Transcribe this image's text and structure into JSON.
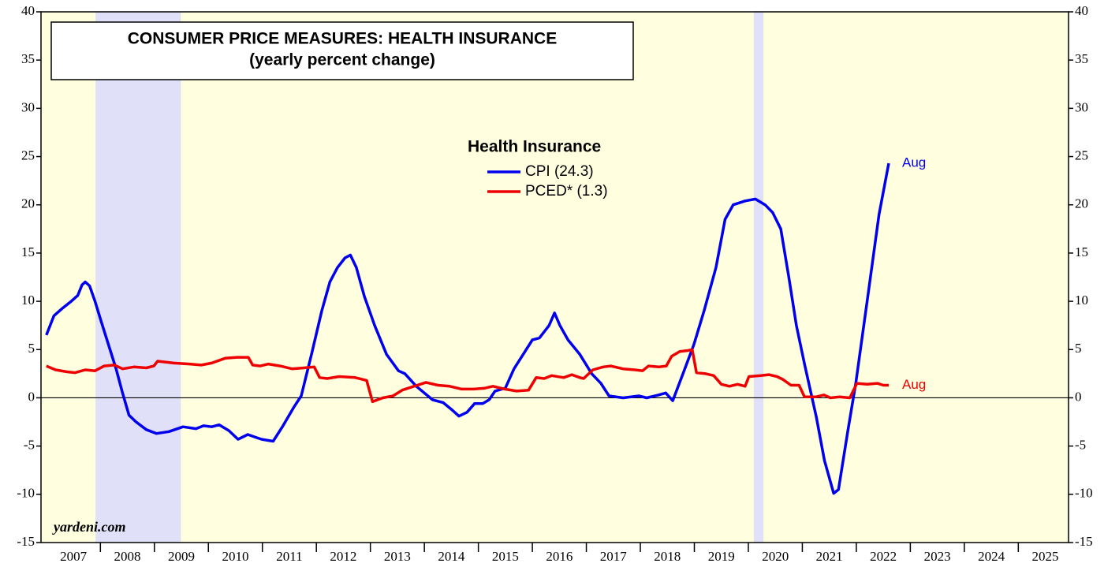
{
  "chart_data": {
    "type": "line",
    "title": "CONSUMER PRICE MEASURES: HEALTH INSURANCE",
    "subtitle": "(yearly percent change)",
    "legend_title": "Health Insurance",
    "source": "yardeni.com",
    "xlim": [
      2006.9,
      2025.93
    ],
    "xticks": [
      {
        "value": 2007.5,
        "label": "2007"
      },
      {
        "value": 2008.5,
        "label": "2008"
      },
      {
        "value": 2009.5,
        "label": "2009"
      },
      {
        "value": 2010.5,
        "label": "2010"
      },
      {
        "value": 2011.5,
        "label": "2011"
      },
      {
        "value": 2012.5,
        "label": "2012"
      },
      {
        "value": 2013.5,
        "label": "2013"
      },
      {
        "value": 2014.5,
        "label": "2014"
      },
      {
        "value": 2015.5,
        "label": "2015"
      },
      {
        "value": 2016.5,
        "label": "2016"
      },
      {
        "value": 2017.5,
        "label": "2017"
      },
      {
        "value": 2018.5,
        "label": "2018"
      },
      {
        "value": 2019.5,
        "label": "2019"
      },
      {
        "value": 2020.5,
        "label": "2020"
      },
      {
        "value": 2021.5,
        "label": "2021"
      },
      {
        "value": 2022.5,
        "label": "2022"
      },
      {
        "value": 2023.5,
        "label": "2023"
      },
      {
        "value": 2024.5,
        "label": "2024"
      },
      {
        "value": 2025.5,
        "label": "2025"
      }
    ],
    "ylim": [
      -15,
      40
    ],
    "yticks": [
      -15,
      -10,
      -5,
      0,
      5,
      10,
      15,
      20,
      25,
      30,
      35,
      40
    ],
    "shading": [
      [
        2007.91,
        2009.49
      ],
      [
        2020.1,
        2020.28
      ]
    ],
    "series": [
      {
        "name": "CPI (24.3)",
        "color": "#0000ee",
        "end_label": "Aug",
        "x": [
          2007.0,
          2007.14,
          2007.28,
          2007.46,
          2007.58,
          2007.66,
          2007.72,
          2007.8,
          2007.9,
          2008.01,
          2008.15,
          2008.29,
          2008.41,
          2008.53,
          2008.66,
          2008.85,
          2009.04,
          2009.27,
          2009.53,
          2009.77,
          2009.91,
          2010.06,
          2010.2,
          2010.38,
          2010.55,
          2010.73,
          2010.88,
          2010.99,
          2011.2,
          2011.37,
          2011.58,
          2011.72,
          2011.91,
          2012.1,
          2012.25,
          2012.39,
          2012.53,
          2012.63,
          2012.74,
          2012.89,
          2013.08,
          2013.3,
          2013.52,
          2013.64,
          2013.85,
          2014.15,
          2014.35,
          2014.5,
          2014.64,
          2014.79,
          2014.93,
          2015.08,
          2015.2,
          2015.31,
          2015.5,
          2015.66,
          2015.83,
          2016.0,
          2016.13,
          2016.31,
          2016.41,
          2016.51,
          2016.66,
          2016.88,
          2017.1,
          2017.27,
          2017.42,
          2017.68,
          2017.97,
          2018.12,
          2018.34,
          2018.47,
          2018.6,
          2018.79,
          2018.99,
          2019.18,
          2019.4,
          2019.57,
          2019.72,
          2019.94,
          2020.13,
          2020.31,
          2020.45,
          2020.6,
          2020.75,
          2020.89,
          2021.04,
          2021.26,
          2021.41,
          2021.58,
          2021.67,
          2021.84,
          2021.99,
          2022.2,
          2022.42,
          2022.6
        ],
        "values": [
          6.5,
          8.5,
          9.2,
          10.0,
          10.6,
          11.7,
          12.0,
          11.6,
          10.0,
          8.0,
          5.5,
          3.0,
          0.5,
          -1.8,
          -2.5,
          -3.3,
          -3.7,
          -3.5,
          -3.0,
          -3.2,
          -2.9,
          -3.0,
          -2.8,
          -3.4,
          -4.3,
          -3.8,
          -4.1,
          -4.3,
          -4.5,
          -3.0,
          -1.0,
          0.2,
          4.5,
          9.0,
          12.0,
          13.5,
          14.5,
          14.8,
          13.5,
          10.5,
          7.5,
          4.5,
          2.8,
          2.5,
          1.2,
          -0.2,
          -0.5,
          -1.2,
          -1.9,
          -1.5,
          -0.6,
          -0.6,
          -0.2,
          0.7,
          1.0,
          3.0,
          4.5,
          6.0,
          6.2,
          7.5,
          8.8,
          7.5,
          6.0,
          4.5,
          2.5,
          1.5,
          0.2,
          0,
          0.2,
          0,
          0.3,
          0.5,
          -0.3,
          2.5,
          5.5,
          9.0,
          13.5,
          18.5,
          20.0,
          20.4,
          20.6,
          20.0,
          19.2,
          17.5,
          12.5,
          7.5,
          3.5,
          -2.0,
          -6.5,
          -9.9,
          -9.5,
          -3.5,
          1.5,
          10.0,
          19.0,
          24.3
        ]
      },
      {
        "name": "PCED* (1.3)",
        "color": "#ee0000",
        "end_label": "Aug",
        "x": [
          2007.0,
          2007.17,
          2007.37,
          2007.53,
          2007.72,
          2007.9,
          2008.07,
          2008.26,
          2008.41,
          2008.62,
          2008.85,
          2008.99,
          2009.06,
          2009.36,
          2009.65,
          2009.87,
          2010.06,
          2010.31,
          2010.53,
          2010.74,
          2010.82,
          2010.96,
          2011.11,
          2011.33,
          2011.55,
          2011.77,
          2011.96,
          2012.06,
          2012.2,
          2012.42,
          2012.72,
          2012.93,
          2013.04,
          2013.23,
          2013.42,
          2013.59,
          2013.81,
          2014.03,
          2014.25,
          2014.47,
          2014.69,
          2014.91,
          2015.12,
          2015.27,
          2015.49,
          2015.71,
          2015.93,
          2016.07,
          2016.22,
          2016.36,
          2016.58,
          2016.73,
          2016.88,
          2016.95,
          2017.12,
          2017.31,
          2017.45,
          2017.68,
          2017.9,
          2018.04,
          2018.15,
          2018.34,
          2018.48,
          2018.58,
          2018.73,
          2018.88,
          2018.96,
          2019.04,
          2019.21,
          2019.36,
          2019.5,
          2019.65,
          2019.8,
          2019.94,
          2020.01,
          2020.23,
          2020.38,
          2020.53,
          2020.64,
          2020.79,
          2020.94,
          2021.04,
          2021.26,
          2021.4,
          2021.52,
          2021.69,
          2021.88,
          2022.01,
          2022.2,
          2022.39,
          2022.5,
          2022.6
        ],
        "values": [
          3.3,
          2.9,
          2.7,
          2.6,
          2.9,
          2.8,
          3.3,
          3.4,
          3.0,
          3.2,
          3.1,
          3.3,
          3.8,
          3.6,
          3.5,
          3.4,
          3.6,
          4.1,
          4.2,
          4.2,
          3.4,
          3.3,
          3.5,
          3.3,
          3.0,
          3.1,
          3.2,
          2.1,
          2.0,
          2.2,
          2.1,
          1.8,
          -0.4,
          0,
          0.2,
          0.8,
          1.2,
          1.6,
          1.3,
          1.2,
          0.9,
          0.9,
          1.0,
          1.2,
          0.9,
          0.7,
          0.8,
          2.1,
          2.0,
          2.3,
          2.1,
          2.4,
          2.1,
          2.0,
          2.9,
          3.2,
          3.3,
          3.0,
          2.9,
          2.8,
          3.3,
          3.2,
          3.3,
          4.3,
          4.8,
          4.9,
          5.0,
          2.6,
          2.5,
          2.3,
          1.4,
          1.2,
          1.4,
          1.2,
          2.2,
          2.3,
          2.4,
          2.2,
          1.9,
          1.3,
          1.3,
          0.1,
          0.1,
          0.3,
          0,
          0.1,
          0,
          1.5,
          1.4,
          1.5,
          1.3,
          1.3
        ]
      }
    ]
  }
}
